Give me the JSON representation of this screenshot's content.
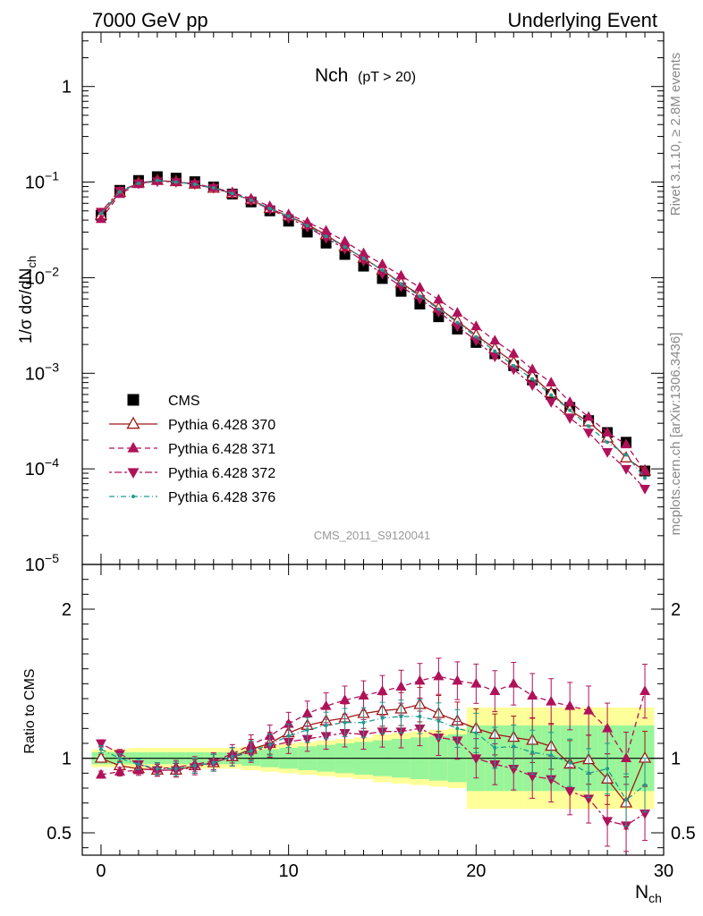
{
  "header": {
    "left": "7000 GeV pp",
    "right": "Underlying Event"
  },
  "title_main": "Nch",
  "title_sub": "(pT > 20)",
  "side_label_top": "Rivet 3.1.10, ≥ 2.8M events",
  "side_label_bottom": "mcplots.cern.ch [arXiv:1306.3436]",
  "watermark": "CMS_2011_S9120041",
  "ylabel_top": "1/σ dσ/dN",
  "ylabel_top_sub": "ch",
  "ylabel_bottom": "Ratio to CMS",
  "xlabel": "N",
  "xlabel_sub": "ch",
  "legend": [
    {
      "label": "CMS"
    },
    {
      "label": "Pythia 6.428 370"
    },
    {
      "label": "Pythia 6.428 371"
    },
    {
      "label": "Pythia 6.428 372"
    },
    {
      "label": "Pythia 6.428 376"
    }
  ],
  "chart_data": {
    "type": "scatter",
    "x": [
      0,
      1,
      2,
      3,
      4,
      5,
      6,
      7,
      8,
      9,
      10,
      11,
      12,
      13,
      14,
      15,
      16,
      17,
      18,
      19,
      20,
      21,
      22,
      23,
      24,
      25,
      26,
      27,
      28,
      29
    ],
    "xlim": [
      -1,
      30
    ],
    "ylim": [
      1e-05,
      3.7
    ],
    "yscale": "log",
    "ratio_ylim": [
      0.35,
      2.3
    ],
    "x_ticks": [
      0,
      10,
      20,
      30
    ],
    "y_ticks": [
      {
        "v": 1,
        "b": "1",
        "e": ""
      },
      {
        "v": 0.1,
        "b": "10",
        "e": "−1"
      },
      {
        "v": 0.01,
        "b": "10",
        "e": "−2"
      },
      {
        "v": 0.001,
        "b": "10",
        "e": "−3"
      },
      {
        "v": 0.0001,
        "b": "10",
        "e": "−4"
      },
      {
        "v": 1e-05,
        "b": "10",
        "e": "−5"
      }
    ],
    "ratio_ticks": [
      {
        "v": 0.5,
        "label": "0.5"
      },
      {
        "v": 1,
        "label": "1"
      },
      {
        "v": 2,
        "label": "2"
      }
    ],
    "band_inner": [
      0.04,
      0.04,
      0.04,
      0.04,
      0.04,
      0.04,
      0.04,
      0.04,
      0.05,
      0.06,
      0.07,
      0.08,
      0.09,
      0.1,
      0.11,
      0.12,
      0.13,
      0.14,
      0.15,
      0.16,
      0.22,
      0.22,
      0.22,
      0.22,
      0.22,
      0.22,
      0.22,
      0.22,
      0.22,
      0.22
    ],
    "band_outer": [
      0.06,
      0.06,
      0.07,
      0.07,
      0.07,
      0.07,
      0.07,
      0.07,
      0.08,
      0.09,
      0.1,
      0.11,
      0.12,
      0.13,
      0.14,
      0.16,
      0.17,
      0.18,
      0.19,
      0.2,
      0.34,
      0.34,
      0.34,
      0.34,
      0.34,
      0.34,
      0.34,
      0.34,
      0.34,
      0.34
    ],
    "series": [
      {
        "name": "CMS",
        "color": "#000000",
        "marker": "square",
        "dash": "",
        "values": [
          0.045,
          0.082,
          0.104,
          0.114,
          0.11,
          0.101,
          0.089,
          0.075,
          0.062,
          0.05,
          0.039,
          0.03,
          0.023,
          0.0175,
          0.0132,
          0.0098,
          0.0072,
          0.0053,
          0.0039,
          0.0029,
          0.0021,
          0.0016,
          0.0012,
          0.00085,
          0.0006,
          0.00044,
          0.00032,
          0.00024,
          0.00019,
          9.5e-05
        ],
        "ratio": []
      },
      {
        "name": "Pythia 6.428 370",
        "color": "#a01818",
        "marker": "open-triangle",
        "dash": "",
        "values": [
          0.045,
          0.078,
          0.098,
          0.104,
          0.101,
          0.095,
          0.086,
          0.076,
          0.065,
          0.053,
          0.044,
          0.036,
          0.028,
          0.021,
          0.016,
          0.012,
          0.0088,
          0.0066,
          0.0048,
          0.0035,
          0.0025,
          0.0018,
          0.0013,
          0.00093,
          0.00062,
          0.00041,
          0.00031,
          0.00021,
          0.00013,
          9.5e-05
        ],
        "ratio": [
          1.0,
          0.95,
          0.93,
          0.92,
          0.92,
          0.95,
          0.97,
          1.01,
          1.06,
          1.1,
          1.17,
          1.22,
          1.25,
          1.27,
          1.3,
          1.32,
          1.33,
          1.36,
          1.3,
          1.25,
          1.2,
          1.16,
          1.14,
          1.12,
          1.08,
          0.96,
          0.99,
          0.86,
          0.7,
          1.0
        ]
      },
      {
        "name": "Pythia 6.428 371",
        "color": "#b0125a",
        "marker": "triangle",
        "dash": "6,4",
        "values": [
          0.041,
          0.075,
          0.095,
          0.103,
          0.101,
          0.096,
          0.088,
          0.078,
          0.067,
          0.056,
          0.046,
          0.038,
          0.031,
          0.024,
          0.018,
          0.0138,
          0.0105,
          0.0079,
          0.0059,
          0.0043,
          0.0031,
          0.0022,
          0.0016,
          0.0011,
          0.0008,
          0.0005,
          0.00035,
          0.00024,
          0.00018,
          9.5e-05
        ],
        "ratio": [
          0.89,
          0.91,
          0.92,
          0.93,
          0.94,
          0.96,
          0.98,
          1.03,
          1.09,
          1.15,
          1.23,
          1.3,
          1.35,
          1.39,
          1.42,
          1.45,
          1.48,
          1.52,
          1.55,
          1.52,
          1.5,
          1.45,
          1.5,
          1.42,
          1.38,
          1.35,
          1.32,
          1.2,
          1.0,
          1.45
        ]
      },
      {
        "name": "Pythia 6.428 372",
        "color": "#b0125a",
        "marker": "down-triangle",
        "dash": "3,3,8,3",
        "values": [
          0.049,
          0.081,
          0.097,
          0.102,
          0.1,
          0.095,
          0.087,
          0.076,
          0.064,
          0.052,
          0.042,
          0.034,
          0.026,
          0.02,
          0.015,
          0.011,
          0.0081,
          0.006,
          0.0044,
          0.0031,
          0.0022,
          0.0015,
          0.0011,
          0.00075,
          0.0005,
          0.00034,
          0.00024,
          0.00015,
          0.0001,
          6.2e-05
        ],
        "ratio": [
          1.1,
          1.03,
          0.96,
          0.92,
          0.92,
          0.94,
          0.97,
          1.01,
          1.04,
          1.08,
          1.11,
          1.13,
          1.15,
          1.17,
          1.16,
          1.18,
          1.18,
          1.2,
          1.14,
          1.12,
          1.0,
          0.96,
          0.93,
          0.88,
          0.86,
          0.78,
          0.73,
          0.58,
          0.55,
          0.63
        ]
      },
      {
        "name": "Pythia 6.428 376",
        "color": "#1e9a90",
        "marker": "dot",
        "dash": "6,3,1,3",
        "values": [
          0.047,
          0.079,
          0.097,
          0.104,
          0.1,
          0.095,
          0.087,
          0.076,
          0.065,
          0.053,
          0.044,
          0.035,
          0.027,
          0.021,
          0.016,
          0.012,
          0.0086,
          0.0064,
          0.0047,
          0.0034,
          0.0024,
          0.0017,
          0.0012,
          0.00087,
          0.00059,
          0.00041,
          0.00028,
          0.00019,
          0.00014,
          8e-05
        ],
        "ratio": [
          1.06,
          1.0,
          0.96,
          0.93,
          0.93,
          0.95,
          0.97,
          1.01,
          1.05,
          1.09,
          1.15,
          1.19,
          1.22,
          1.24,
          1.24,
          1.27,
          1.28,
          1.28,
          1.25,
          1.2,
          1.17,
          1.07,
          1.08,
          1.04,
          1.02,
          0.97,
          0.9,
          0.93,
          0.72,
          0.82
        ]
      }
    ]
  }
}
